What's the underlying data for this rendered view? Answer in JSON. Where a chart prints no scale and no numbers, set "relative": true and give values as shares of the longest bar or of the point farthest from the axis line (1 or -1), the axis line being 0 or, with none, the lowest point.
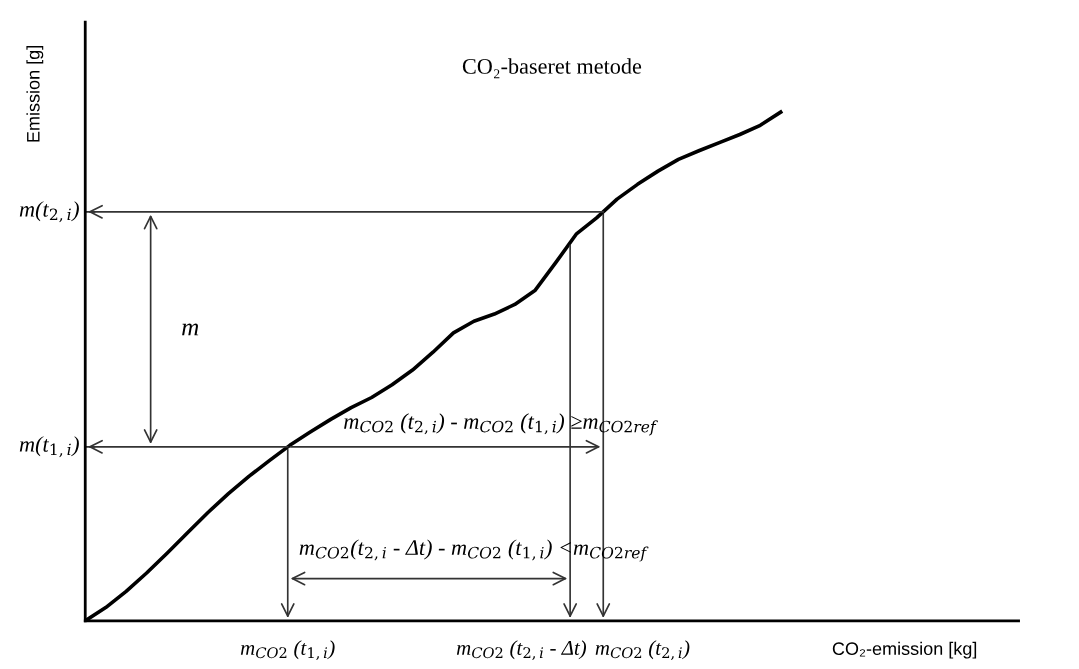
{
  "chart_data": {
    "type": "line",
    "title": "CO₂-baseret metode",
    "xlabel": "CO₂-emission [kg]",
    "ylabel": "Emission [g]",
    "relative": true,
    "categories": [
      null,
      null,
      null,
      null,
      null,
      null,
      null,
      null,
      null,
      null,
      null,
      null,
      null,
      null,
      null,
      null,
      null,
      null,
      null,
      null,
      null,
      null,
      null,
      null,
      null,
      null,
      null,
      null,
      null,
      null,
      null,
      null,
      null,
      null,
      null
    ],
    "series": [
      {
        "color": "#000000",
        "values": [
          0,
          0.026,
          0.058,
          0.094,
          0.133,
          0.173,
          0.213,
          0.25,
          0.284,
          0.315,
          0.345,
          0.371,
          0.396,
          0.419,
          0.439,
          0.464,
          0.493,
          0.528,
          0.566,
          0.589,
          0.603,
          0.622,
          0.65,
          0.704,
          0.76,
          0.792,
          0.829,
          0.858,
          0.884,
          0.907,
          0.924,
          0.94,
          0.956,
          0.974,
          1.0
        ]
      }
    ],
    "ref_lines": [
      {
        "axis": "y",
        "value": 0.804,
        "label": "m(t$_{2,i}$)",
        "color": "#333333"
      },
      {
        "axis": "y",
        "value": 0.342,
        "label": "m(t$_{1,i}$)",
        "color": "#333333"
      }
    ],
    "annotations": [
      "m$_{CO2}$ (t$_{1,i}$)",
      "m$_{CO2}$ (t$_{2,i}$ - Δt)",
      "m$_{CO2}$ (t$_{2,i}$)",
      "m",
      "m$_{CO2}$ (t$_{2,i}$) - m$_{CO2}$ (t$_{1,i}$) ≥m$_{CO2ref}$",
      "m$_{CO2}$(t$_{2,i}$ - Δt) - m$_{CO2}$ (t$_{1,i}$) <m$_{CO2ref}$"
    ]
  }
}
